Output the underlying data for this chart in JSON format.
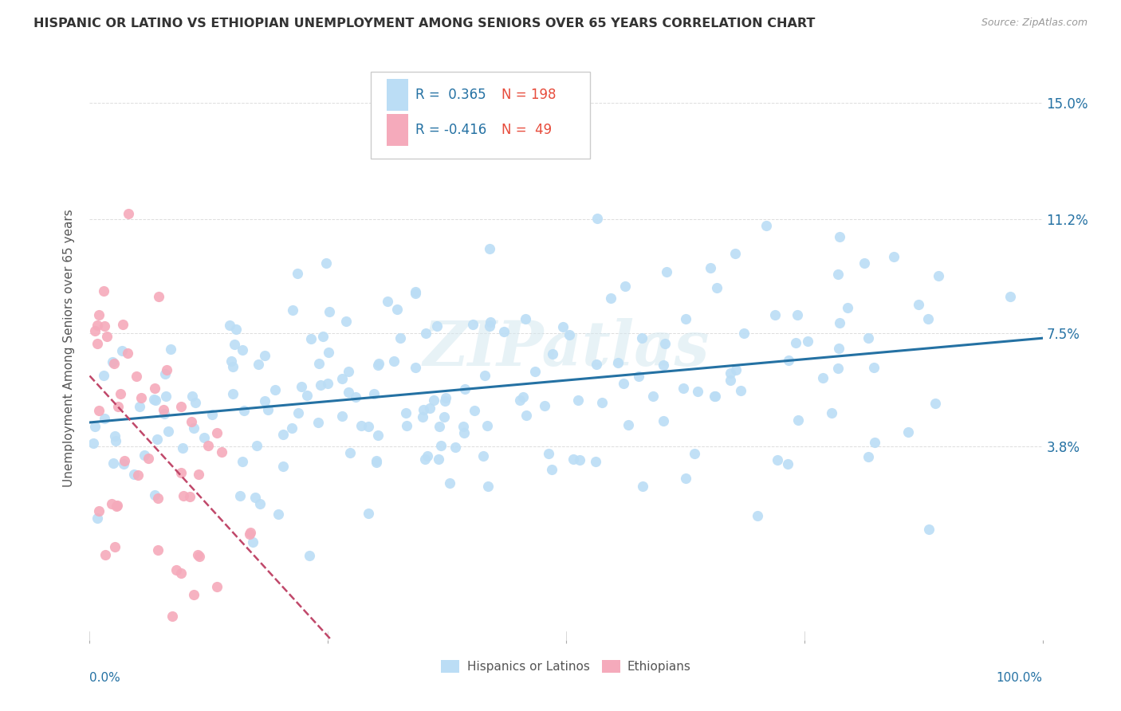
{
  "title": "HISPANIC OR LATINO VS ETHIOPIAN UNEMPLOYMENT AMONG SENIORS OVER 65 YEARS CORRELATION CHART",
  "source": "Source: ZipAtlas.com",
  "ylabel": "Unemployment Among Seniors over 65 years",
  "ytick_values": [
    3.8,
    7.5,
    11.2,
    15.0
  ],
  "xlim": [
    0,
    100
  ],
  "ylim": [
    -2.5,
    16.5
  ],
  "r_hispanic": 0.365,
  "n_hispanic": 198,
  "r_ethiopian": -0.416,
  "n_ethiopian": 49,
  "scatter_color_hispanic": "#BBDDF5",
  "scatter_color_ethiopian": "#F5AABB",
  "line_color_hispanic": "#2471A3",
  "line_color_ethiopian": "#C0486A",
  "legend_label_hispanic": "Hispanics or Latinos",
  "legend_label_ethiopian": "Ethiopians",
  "watermark": "ZIPatlas",
  "background_color": "#FFFFFF",
  "grid_color": "#DDDDDD",
  "title_color": "#333333",
  "axis_label_color": "#2471A3",
  "legend_r_color": "#2471A3",
  "legend_n_color": "#E74C3C"
}
